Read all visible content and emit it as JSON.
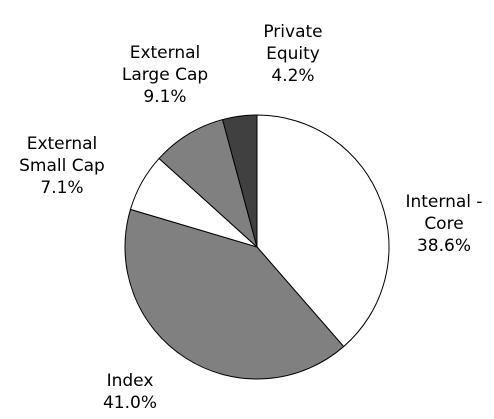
{
  "chart_data": {
    "type": "pie",
    "categories": [
      "Internal - Core",
      "Index",
      "External Small Cap",
      "External Large Cap",
      "Private Equity"
    ],
    "values": [
      38.6,
      41.0,
      7.1,
      9.1,
      4.2
    ],
    "value_labels": [
      "38.6%",
      "41.0%",
      "7.1%",
      "9.1%",
      "4.2%"
    ],
    "colors": [
      "#ffffff",
      "#808080",
      "#ffffff",
      "#808080",
      "#404040"
    ]
  }
}
